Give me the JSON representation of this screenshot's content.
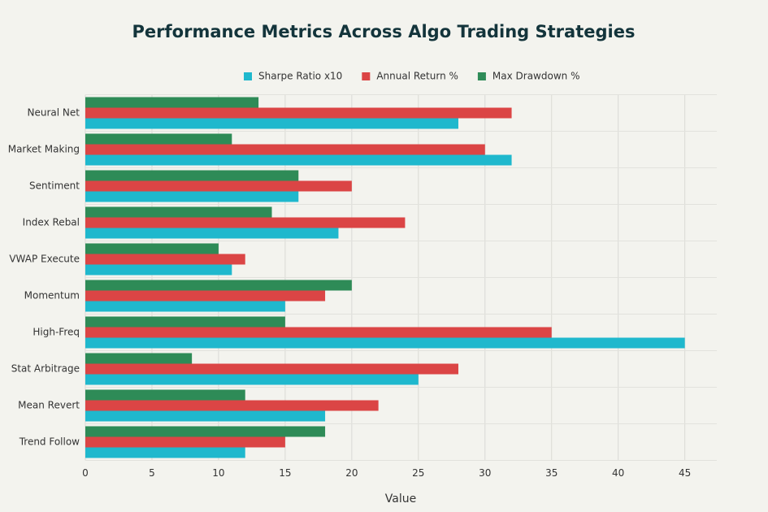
{
  "chart_data": {
    "type": "hbar",
    "title": "Performance Metrics Across Algo Trading Strategies",
    "x_label": "Value",
    "categories": [
      "Trend Follow",
      "Mean Revert",
      "Stat Arbitrage",
      "High-Freq",
      "Momentum",
      "VWAP Execute",
      "Index Rebal",
      "Sentiment",
      "Market Making",
      "Neural Net"
    ],
    "series": [
      {
        "name": "Sharpe Ratio x10",
        "color": "#1FB8CD",
        "values": [
          12,
          18,
          25,
          45,
          15,
          11,
          19,
          16,
          32,
          28
        ]
      },
      {
        "name": "Annual Return %",
        "color": "#DB4545",
        "values": [
          15,
          22,
          28,
          35,
          18,
          12,
          24,
          20,
          30,
          32
        ]
      },
      {
        "name": "Max Drawdown %",
        "color": "#2E8B57",
        "values": [
          18,
          12,
          8,
          15,
          20,
          10,
          14,
          16,
          11,
          13
        ]
      }
    ],
    "xlim": [
      0,
      47.4
    ],
    "xticks": [
      0,
      5,
      10,
      15,
      20,
      25,
      30,
      35,
      40,
      45
    ],
    "grid": true
  }
}
